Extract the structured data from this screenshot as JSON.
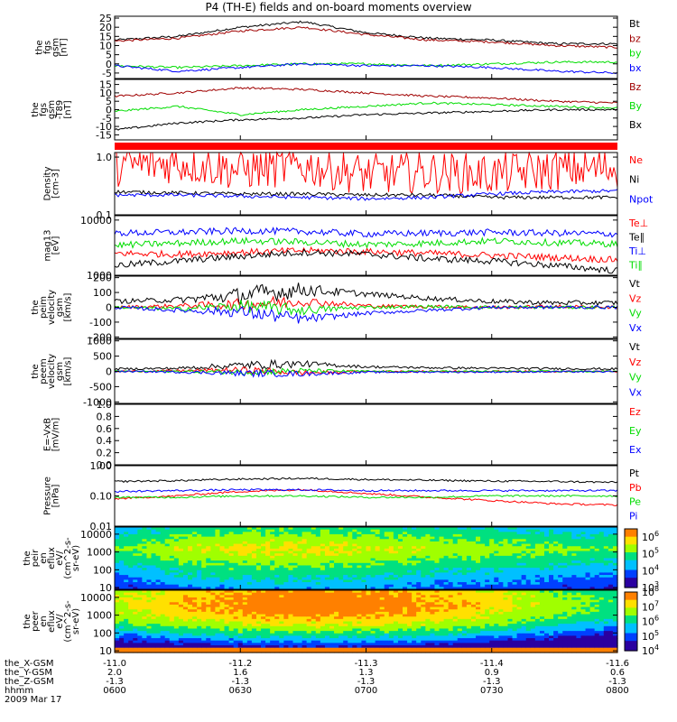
{
  "title": "P4 (TH-E) fields and on-board moments overview",
  "colors": {
    "black": "#000000",
    "red": "#ff0000",
    "darkred": "#a00000",
    "green": "#00dd00",
    "blue": "#0000ff"
  },
  "chart_data": [
    {
      "type": "line",
      "id": "fgs_gsm",
      "ylabel": [
        "the",
        "fgs",
        "gsm",
        "[nT]"
      ],
      "yticks": [
        "25",
        "20",
        "15",
        "10",
        "5",
        "0",
        "-5"
      ],
      "ylim": [
        -8,
        26
      ],
      "series": [
        {
          "name": "Bt",
          "color": "#000000",
          "values": [
            13,
            15,
            20,
            23,
            17,
            14,
            13,
            11,
            11
          ]
        },
        {
          "name": "bz",
          "color": "#a00000",
          "values": [
            12.5,
            14,
            18,
            20,
            16,
            13,
            12,
            10,
            9
          ]
        },
        {
          "name": "by",
          "color": "#00dd00",
          "values": [
            -1,
            -2,
            -1,
            0,
            0,
            -1,
            0,
            1,
            1
          ]
        },
        {
          "name": "bx",
          "color": "#0000ff",
          "values": [
            -1,
            -4,
            -2,
            0,
            -1,
            -1,
            -2,
            -4,
            -5
          ]
        }
      ]
    },
    {
      "type": "line",
      "id": "fgs_gsm_rel",
      "ylabel": [
        "the",
        "fgs",
        "gsm",
        "-T89",
        "[nT]"
      ],
      "yticks": [
        "15",
        "10",
        "5",
        "0",
        "-5",
        "-10",
        "-15"
      ],
      "ylim": [
        -18,
        18
      ],
      "series": [
        {
          "name": "Bz",
          "color": "#a00000",
          "values": [
            8,
            10,
            13,
            12,
            10,
            8,
            7,
            5,
            4
          ]
        },
        {
          "name": "By",
          "color": "#00dd00",
          "values": [
            -1,
            2,
            -3,
            0,
            2,
            4,
            3,
            2,
            1
          ]
        },
        {
          "name": "Bx",
          "color": "#000000",
          "values": [
            -12,
            -8,
            -6,
            -5,
            -3,
            -2,
            -1,
            0,
            0
          ]
        }
      ]
    },
    {
      "type": "line",
      "id": "density",
      "ylabel": [
        "Density",
        "[cm-3]"
      ],
      "yticks": [
        "1.0",
        "0.1"
      ],
      "ylim": [
        0.1,
        1.2
      ],
      "log": true,
      "series": [
        {
          "name": "Ne",
          "color": "#ff0000",
          "values": [
            0.7,
            0.8,
            0.6,
            0.7,
            0.5,
            0.55,
            0.5,
            0.6,
            0.65
          ]
        },
        {
          "name": "Ni",
          "color": "#000000",
          "values": [
            0.25,
            0.24,
            0.23,
            0.23,
            0.22,
            0.22,
            0.2,
            0.2,
            0.2
          ]
        },
        {
          "name": "Npot",
          "color": "#0000ff",
          "values": [
            0.22,
            0.22,
            0.21,
            0.2,
            0.19,
            0.2,
            0.23,
            0.25,
            0.26
          ]
        }
      ]
    },
    {
      "type": "line",
      "id": "temp",
      "ylabel": [
        "mag13",
        "[eV]"
      ],
      "yticks": [
        "10000",
        "1000"
      ],
      "ylim": [
        1000,
        12000
      ],
      "log": true,
      "series": [
        {
          "name": "Te⊥",
          "color": "#ff0000",
          "values": [
            2500,
            2400,
            2600,
            2800,
            2700,
            2500,
            2300,
            2100,
            1900
          ]
        },
        {
          "name": "Te∥",
          "color": "#000000",
          "values": [
            1500,
            1800,
            2200,
            2600,
            2400,
            2000,
            1800,
            1500,
            1200
          ]
        },
        {
          "name": "Ti⊥",
          "color": "#0000ff",
          "values": [
            5800,
            6000,
            6400,
            6200,
            5600,
            5800,
            6000,
            5800,
            5600
          ]
        },
        {
          "name": "Ti∥",
          "color": "#00dd00",
          "values": [
            3500,
            3800,
            4200,
            4000,
            3600,
            3800,
            4200,
            3900,
            3700
          ]
        }
      ]
    },
    {
      "type": "line",
      "id": "peim_velocity",
      "ylabel": [
        "the",
        "peim",
        "velocity",
        "gsm",
        "[km/s]"
      ],
      "yticks": [
        "200",
        "100",
        "0",
        "-100",
        "-200"
      ],
      "ylim": [
        -210,
        210
      ],
      "series": [
        {
          "name": "Vt",
          "color": "#000000",
          "values": [
            40,
            50,
            80,
            120,
            90,
            60,
            40,
            30,
            30
          ]
        },
        {
          "name": "Vz",
          "color": "#ff0000",
          "values": [
            0,
            10,
            20,
            40,
            10,
            5,
            0,
            5,
            0
          ]
        },
        {
          "name": "Vy",
          "color": "#00dd00",
          "values": [
            0,
            -10,
            10,
            -20,
            0,
            5,
            0,
            0,
            0
          ]
        },
        {
          "name": "Vx",
          "color": "#0000ff",
          "values": [
            0,
            -20,
            -30,
            -80,
            -40,
            -20,
            0,
            0,
            0
          ]
        }
      ]
    },
    {
      "type": "line",
      "id": "peem_velocity",
      "ylabel": [
        "the",
        "peem",
        "velocity",
        "gsm",
        "[km/s]"
      ],
      "yticks": [
        "1000",
        "500",
        "0",
        "-500",
        "-1000"
      ],
      "ylim": [
        -1050,
        1050
      ],
      "series": [
        {
          "name": "Vt",
          "color": "#000000",
          "values": [
            80,
            100,
            200,
            250,
            150,
            120,
            100,
            90,
            80
          ]
        },
        {
          "name": "Vz",
          "color": "#ff0000",
          "values": [
            0,
            20,
            50,
            -50,
            0,
            0,
            0,
            0,
            0
          ]
        },
        {
          "name": "Vy",
          "color": "#00dd00",
          "values": [
            0,
            0,
            -20,
            20,
            0,
            0,
            0,
            0,
            0
          ]
        },
        {
          "name": "Vx",
          "color": "#0000ff",
          "values": [
            0,
            -20,
            -60,
            -80,
            -30,
            -20,
            -20,
            -10,
            -10
          ]
        }
      ]
    },
    {
      "type": "line",
      "id": "efield",
      "ylabel": [
        "E=-VxB",
        "[mV/m]"
      ],
      "yticks": [
        "1.0",
        "0.8",
        "0.6",
        "0.4",
        "0.2",
        "0.0"
      ],
      "ylim": [
        0,
        1
      ],
      "series": [
        {
          "name": "Ez",
          "color": "#ff0000",
          "values": []
        },
        {
          "name": "Ey",
          "color": "#00dd00",
          "values": []
        },
        {
          "name": "Ex",
          "color": "#0000ff",
          "values": []
        }
      ]
    },
    {
      "type": "line",
      "id": "pressure",
      "ylabel": [
        "Pressure",
        "[nPa]"
      ],
      "yticks": [
        "1.00",
        "0.10",
        "0.01"
      ],
      "ylim": [
        0.01,
        1.0
      ],
      "log": true,
      "series": [
        {
          "name": "Pt",
          "color": "#000000",
          "values": [
            0.3,
            0.32,
            0.36,
            0.38,
            0.35,
            0.33,
            0.31,
            0.3,
            0.28
          ]
        },
        {
          "name": "Pb",
          "color": "#ff0000",
          "values": [
            0.08,
            0.1,
            0.14,
            0.16,
            0.12,
            0.09,
            0.07,
            0.055,
            0.05
          ]
        },
        {
          "name": "Pe",
          "color": "#00dd00",
          "values": [
            0.09,
            0.09,
            0.1,
            0.1,
            0.09,
            0.09,
            0.1,
            0.1,
            0.1
          ]
        },
        {
          "name": "Pi",
          "color": "#0000ff",
          "values": [
            0.14,
            0.15,
            0.16,
            0.16,
            0.15,
            0.15,
            0.15,
            0.15,
            0.15
          ]
        }
      ]
    },
    {
      "type": "heatmap",
      "id": "peir_eflux",
      "ylabel": [
        "the",
        "peir",
        "en",
        "eflux",
        "eV/",
        "(cm^2-s-",
        "sr-eV)"
      ],
      "yticks": [
        "10000",
        "1000",
        "100",
        "10"
      ],
      "ylim": [
        8,
        25000
      ],
      "log": true,
      "colorbar_ticks": [
        "10^6",
        "10^5",
        "10^4",
        "10^3"
      ],
      "colorbar_range": [
        1000,
        3000000
      ],
      "levels": [
        0.35,
        0.5,
        0.55,
        0.55,
        0.5,
        0.45,
        0.4,
        0.35
      ]
    },
    {
      "type": "heatmap",
      "id": "peer_eflux",
      "ylabel": [
        "the",
        "peer",
        "en",
        "eflux",
        "eV/",
        "(cm^2-s-",
        "sr-eV)"
      ],
      "yticks": [
        "10000",
        "1000",
        "100",
        "10"
      ],
      "ylim": [
        8,
        25000
      ],
      "log": true,
      "colorbar_ticks": [
        "10^8",
        "10^7",
        "10^6",
        "10^5",
        "10^4"
      ],
      "colorbar_range": [
        10000,
        100000000
      ],
      "levels": [
        0.6,
        0.72,
        0.8,
        0.82,
        0.78,
        0.7,
        0.55,
        0.4
      ]
    }
  ],
  "x_axis": {
    "rows": [
      {
        "label": "the_X-GSM",
        "values": [
          "-11.0",
          "-11.2",
          "-11.3",
          "-11.4",
          "-11.6"
        ]
      },
      {
        "label": "the_Y-GSM",
        "values": [
          "2.0",
          "1.6",
          "1.3",
          "0.9",
          "0.6"
        ]
      },
      {
        "label": "the_Z-GSM",
        "values": [
          "-1.3",
          "-1.3",
          "-1.3",
          "-1.3",
          "-1.3"
        ]
      },
      {
        "label": "hhmm",
        "values": [
          "0600",
          "0630",
          "0700",
          "0730",
          "0800"
        ]
      }
    ],
    "date": "2009 Mar 17"
  }
}
